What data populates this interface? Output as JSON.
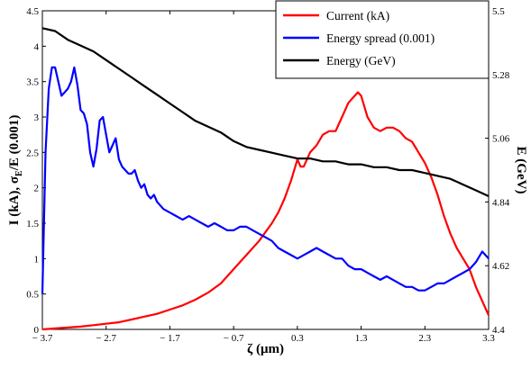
{
  "chart_data": {
    "type": "line",
    "xlabel": "ζ (μm)",
    "ylabel_left": {
      "main": "I (kA),  σ",
      "sub": "E",
      "tail": "/E (0.001)"
    },
    "ylabel_right": "E (GeV)",
    "xlim": [
      -3.7,
      3.3
    ],
    "ylim_left": [
      0,
      4.5
    ],
    "ylim_right": [
      4.4,
      5.5
    ],
    "x_ticks": [
      -3.7,
      -2.7,
      -1.7,
      -0.7,
      0.3,
      1.3,
      2.3,
      3.3
    ],
    "x_tick_labels": [
      "− 3.7",
      "− 2.7",
      "− 1.7",
      "− 0.7",
      "0.3",
      "1.3",
      "2.3",
      "3.3"
    ],
    "y_left_ticks": [
      0,
      0.5,
      1,
      1.5,
      2,
      2.5,
      3,
      3.5,
      4,
      4.5
    ],
    "y_left_tick_labels": [
      "0",
      "0.5",
      "1",
      "1.5",
      "2",
      "2.5",
      "3",
      "3.5",
      "4",
      "4.5"
    ],
    "y_right_ticks": [
      4.4,
      4.62,
      4.84,
      5.06,
      5.28,
      5.5
    ],
    "y_right_tick_labels": [
      "4.4",
      "4.62",
      "4.84",
      "5.06",
      "5.28",
      "5.5"
    ],
    "grid": false,
    "legend_position": "top-right",
    "series": [
      {
        "name": "Current (kA)",
        "color": "#ff0000",
        "axis": "left",
        "x": [
          -3.7,
          -3.4,
          -3.1,
          -2.9,
          -2.7,
          -2.5,
          -2.3,
          -2.1,
          -1.9,
          -1.7,
          -1.5,
          -1.3,
          -1.1,
          -0.9,
          -0.7,
          -0.5,
          -0.3,
          -0.1,
          0.0,
          0.1,
          0.2,
          0.3,
          0.35,
          0.4,
          0.5,
          0.6,
          0.7,
          0.8,
          0.9,
          1.0,
          1.1,
          1.2,
          1.25,
          1.3,
          1.4,
          1.5,
          1.6,
          1.7,
          1.8,
          1.9,
          2.0,
          2.1,
          2.2,
          2.3,
          2.4,
          2.5,
          2.6,
          2.7,
          2.8,
          2.9,
          3.0,
          3.1,
          3.2,
          3.3
        ],
        "y": [
          0.0,
          0.02,
          0.04,
          0.06,
          0.08,
          0.1,
          0.14,
          0.18,
          0.22,
          0.28,
          0.34,
          0.42,
          0.52,
          0.65,
          0.85,
          1.05,
          1.25,
          1.5,
          1.65,
          1.85,
          2.1,
          2.4,
          2.3,
          2.3,
          2.5,
          2.6,
          2.75,
          2.8,
          2.8,
          3.0,
          3.2,
          3.3,
          3.35,
          3.3,
          3.0,
          2.85,
          2.8,
          2.85,
          2.85,
          2.8,
          2.7,
          2.65,
          2.5,
          2.35,
          2.15,
          1.9,
          1.6,
          1.35,
          1.15,
          1.0,
          0.85,
          0.6,
          0.4,
          0.2
        ]
      },
      {
        "name": "Energy spread (0.001)",
        "color": "#0000ff",
        "axis": "left",
        "x": [
          -3.7,
          -3.65,
          -3.6,
          -3.55,
          -3.5,
          -3.45,
          -3.4,
          -3.35,
          -3.3,
          -3.25,
          -3.2,
          -3.15,
          -3.1,
          -3.05,
          -3.0,
          -2.95,
          -2.9,
          -2.85,
          -2.8,
          -2.75,
          -2.7,
          -2.65,
          -2.6,
          -2.55,
          -2.5,
          -2.45,
          -2.4,
          -2.35,
          -2.3,
          -2.25,
          -2.2,
          -2.15,
          -2.1,
          -2.05,
          -2.0,
          -1.95,
          -1.9,
          -1.85,
          -1.8,
          -1.7,
          -1.6,
          -1.5,
          -1.4,
          -1.3,
          -1.2,
          -1.1,
          -1.0,
          -0.9,
          -0.8,
          -0.7,
          -0.6,
          -0.5,
          -0.4,
          -0.3,
          -0.2,
          -0.1,
          0.0,
          0.1,
          0.2,
          0.3,
          0.4,
          0.5,
          0.6,
          0.7,
          0.8,
          0.9,
          1.0,
          1.1,
          1.2,
          1.3,
          1.4,
          1.5,
          1.6,
          1.7,
          1.8,
          1.9,
          2.0,
          2.1,
          2.2,
          2.3,
          2.4,
          2.5,
          2.6,
          2.7,
          2.8,
          2.9,
          3.0,
          3.1,
          3.2,
          3.3
        ],
        "y": [
          0.5,
          2.5,
          3.4,
          3.7,
          3.7,
          3.5,
          3.3,
          3.35,
          3.4,
          3.5,
          3.7,
          3.45,
          3.1,
          3.05,
          2.9,
          2.5,
          2.3,
          2.55,
          2.95,
          3.0,
          2.75,
          2.5,
          2.6,
          2.7,
          2.4,
          2.3,
          2.25,
          2.2,
          2.2,
          2.25,
          2.1,
          2.0,
          2.05,
          1.9,
          1.85,
          1.9,
          1.8,
          1.75,
          1.7,
          1.65,
          1.6,
          1.55,
          1.6,
          1.55,
          1.5,
          1.45,
          1.5,
          1.45,
          1.4,
          1.4,
          1.45,
          1.45,
          1.4,
          1.35,
          1.3,
          1.25,
          1.15,
          1.1,
          1.05,
          1.0,
          1.05,
          1.1,
          1.15,
          1.1,
          1.05,
          1.0,
          1.0,
          0.9,
          0.85,
          0.85,
          0.8,
          0.75,
          0.7,
          0.75,
          0.7,
          0.65,
          0.6,
          0.6,
          0.55,
          0.55,
          0.6,
          0.65,
          0.65,
          0.7,
          0.75,
          0.8,
          0.85,
          0.95,
          1.1,
          1.0
        ]
      },
      {
        "name": "Energy (GeV)",
        "color": "#000000",
        "axis": "right",
        "x": [
          -3.7,
          -3.5,
          -3.3,
          -3.1,
          -2.9,
          -2.7,
          -2.5,
          -2.3,
          -2.1,
          -1.9,
          -1.7,
          -1.5,
          -1.3,
          -1.1,
          -0.9,
          -0.7,
          -0.5,
          -0.3,
          -0.1,
          0.1,
          0.3,
          0.5,
          0.7,
          0.9,
          1.1,
          1.3,
          1.5,
          1.7,
          1.9,
          2.1,
          2.3,
          2.5,
          2.7,
          2.9,
          3.1,
          3.3
        ],
        "y": [
          5.44,
          5.43,
          5.4,
          5.38,
          5.36,
          5.33,
          5.3,
          5.27,
          5.24,
          5.21,
          5.18,
          5.15,
          5.12,
          5.1,
          5.08,
          5.05,
          5.03,
          5.02,
          5.01,
          5.0,
          4.99,
          4.99,
          4.98,
          4.98,
          4.97,
          4.97,
          4.96,
          4.96,
          4.95,
          4.95,
          4.94,
          4.93,
          4.92,
          4.9,
          4.88,
          4.86
        ]
      }
    ]
  }
}
